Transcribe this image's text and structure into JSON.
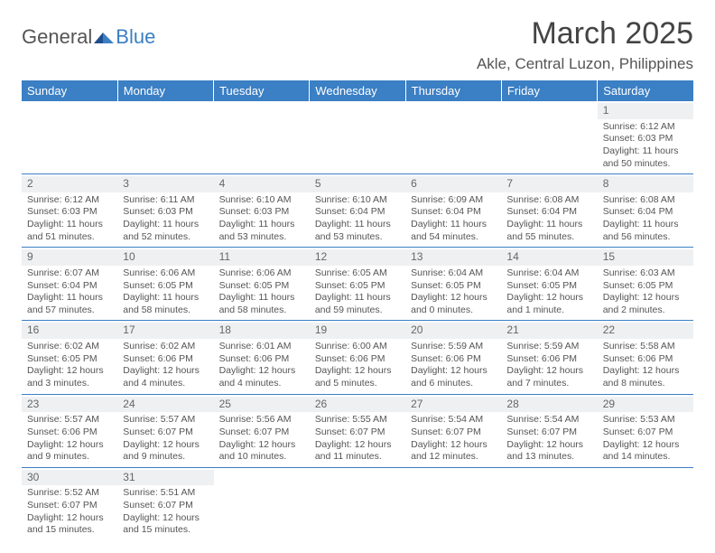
{
  "logo": {
    "text1": "General",
    "text2": "Blue"
  },
  "title": "March 2025",
  "location": "Akle, Central Luzon, Philippines",
  "colors": {
    "header_bg": "#3b7fc4",
    "header_text": "#ffffff",
    "body_text": "#555555",
    "daynum_bg": "#eef0f2",
    "row_border": "#3b7fc4",
    "page_bg": "#ffffff"
  },
  "weekdays": [
    "Sunday",
    "Monday",
    "Tuesday",
    "Wednesday",
    "Thursday",
    "Friday",
    "Saturday"
  ],
  "weeks": [
    [
      {
        "n": "",
        "sr": "",
        "ss": "",
        "dl": ""
      },
      {
        "n": "",
        "sr": "",
        "ss": "",
        "dl": ""
      },
      {
        "n": "",
        "sr": "",
        "ss": "",
        "dl": ""
      },
      {
        "n": "",
        "sr": "",
        "ss": "",
        "dl": ""
      },
      {
        "n": "",
        "sr": "",
        "ss": "",
        "dl": ""
      },
      {
        "n": "",
        "sr": "",
        "ss": "",
        "dl": ""
      },
      {
        "n": "1",
        "sr": "Sunrise: 6:12 AM",
        "ss": "Sunset: 6:03 PM",
        "dl": "Daylight: 11 hours and 50 minutes."
      }
    ],
    [
      {
        "n": "2",
        "sr": "Sunrise: 6:12 AM",
        "ss": "Sunset: 6:03 PM",
        "dl": "Daylight: 11 hours and 51 minutes."
      },
      {
        "n": "3",
        "sr": "Sunrise: 6:11 AM",
        "ss": "Sunset: 6:03 PM",
        "dl": "Daylight: 11 hours and 52 minutes."
      },
      {
        "n": "4",
        "sr": "Sunrise: 6:10 AM",
        "ss": "Sunset: 6:03 PM",
        "dl": "Daylight: 11 hours and 53 minutes."
      },
      {
        "n": "5",
        "sr": "Sunrise: 6:10 AM",
        "ss": "Sunset: 6:04 PM",
        "dl": "Daylight: 11 hours and 53 minutes."
      },
      {
        "n": "6",
        "sr": "Sunrise: 6:09 AM",
        "ss": "Sunset: 6:04 PM",
        "dl": "Daylight: 11 hours and 54 minutes."
      },
      {
        "n": "7",
        "sr": "Sunrise: 6:08 AM",
        "ss": "Sunset: 6:04 PM",
        "dl": "Daylight: 11 hours and 55 minutes."
      },
      {
        "n": "8",
        "sr": "Sunrise: 6:08 AM",
        "ss": "Sunset: 6:04 PM",
        "dl": "Daylight: 11 hours and 56 minutes."
      }
    ],
    [
      {
        "n": "9",
        "sr": "Sunrise: 6:07 AM",
        "ss": "Sunset: 6:04 PM",
        "dl": "Daylight: 11 hours and 57 minutes."
      },
      {
        "n": "10",
        "sr": "Sunrise: 6:06 AM",
        "ss": "Sunset: 6:05 PM",
        "dl": "Daylight: 11 hours and 58 minutes."
      },
      {
        "n": "11",
        "sr": "Sunrise: 6:06 AM",
        "ss": "Sunset: 6:05 PM",
        "dl": "Daylight: 11 hours and 58 minutes."
      },
      {
        "n": "12",
        "sr": "Sunrise: 6:05 AM",
        "ss": "Sunset: 6:05 PM",
        "dl": "Daylight: 11 hours and 59 minutes."
      },
      {
        "n": "13",
        "sr": "Sunrise: 6:04 AM",
        "ss": "Sunset: 6:05 PM",
        "dl": "Daylight: 12 hours and 0 minutes."
      },
      {
        "n": "14",
        "sr": "Sunrise: 6:04 AM",
        "ss": "Sunset: 6:05 PM",
        "dl": "Daylight: 12 hours and 1 minute."
      },
      {
        "n": "15",
        "sr": "Sunrise: 6:03 AM",
        "ss": "Sunset: 6:05 PM",
        "dl": "Daylight: 12 hours and 2 minutes."
      }
    ],
    [
      {
        "n": "16",
        "sr": "Sunrise: 6:02 AM",
        "ss": "Sunset: 6:05 PM",
        "dl": "Daylight: 12 hours and 3 minutes."
      },
      {
        "n": "17",
        "sr": "Sunrise: 6:02 AM",
        "ss": "Sunset: 6:06 PM",
        "dl": "Daylight: 12 hours and 4 minutes."
      },
      {
        "n": "18",
        "sr": "Sunrise: 6:01 AM",
        "ss": "Sunset: 6:06 PM",
        "dl": "Daylight: 12 hours and 4 minutes."
      },
      {
        "n": "19",
        "sr": "Sunrise: 6:00 AM",
        "ss": "Sunset: 6:06 PM",
        "dl": "Daylight: 12 hours and 5 minutes."
      },
      {
        "n": "20",
        "sr": "Sunrise: 5:59 AM",
        "ss": "Sunset: 6:06 PM",
        "dl": "Daylight: 12 hours and 6 minutes."
      },
      {
        "n": "21",
        "sr": "Sunrise: 5:59 AM",
        "ss": "Sunset: 6:06 PM",
        "dl": "Daylight: 12 hours and 7 minutes."
      },
      {
        "n": "22",
        "sr": "Sunrise: 5:58 AM",
        "ss": "Sunset: 6:06 PM",
        "dl": "Daylight: 12 hours and 8 minutes."
      }
    ],
    [
      {
        "n": "23",
        "sr": "Sunrise: 5:57 AM",
        "ss": "Sunset: 6:06 PM",
        "dl": "Daylight: 12 hours and 9 minutes."
      },
      {
        "n": "24",
        "sr": "Sunrise: 5:57 AM",
        "ss": "Sunset: 6:07 PM",
        "dl": "Daylight: 12 hours and 9 minutes."
      },
      {
        "n": "25",
        "sr": "Sunrise: 5:56 AM",
        "ss": "Sunset: 6:07 PM",
        "dl": "Daylight: 12 hours and 10 minutes."
      },
      {
        "n": "26",
        "sr": "Sunrise: 5:55 AM",
        "ss": "Sunset: 6:07 PM",
        "dl": "Daylight: 12 hours and 11 minutes."
      },
      {
        "n": "27",
        "sr": "Sunrise: 5:54 AM",
        "ss": "Sunset: 6:07 PM",
        "dl": "Daylight: 12 hours and 12 minutes."
      },
      {
        "n": "28",
        "sr": "Sunrise: 5:54 AM",
        "ss": "Sunset: 6:07 PM",
        "dl": "Daylight: 12 hours and 13 minutes."
      },
      {
        "n": "29",
        "sr": "Sunrise: 5:53 AM",
        "ss": "Sunset: 6:07 PM",
        "dl": "Daylight: 12 hours and 14 minutes."
      }
    ],
    [
      {
        "n": "30",
        "sr": "Sunrise: 5:52 AM",
        "ss": "Sunset: 6:07 PM",
        "dl": "Daylight: 12 hours and 15 minutes."
      },
      {
        "n": "31",
        "sr": "Sunrise: 5:51 AM",
        "ss": "Sunset: 6:07 PM",
        "dl": "Daylight: 12 hours and 15 minutes."
      },
      {
        "n": "",
        "sr": "",
        "ss": "",
        "dl": ""
      },
      {
        "n": "",
        "sr": "",
        "ss": "",
        "dl": ""
      },
      {
        "n": "",
        "sr": "",
        "ss": "",
        "dl": ""
      },
      {
        "n": "",
        "sr": "",
        "ss": "",
        "dl": ""
      },
      {
        "n": "",
        "sr": "",
        "ss": "",
        "dl": ""
      }
    ]
  ]
}
